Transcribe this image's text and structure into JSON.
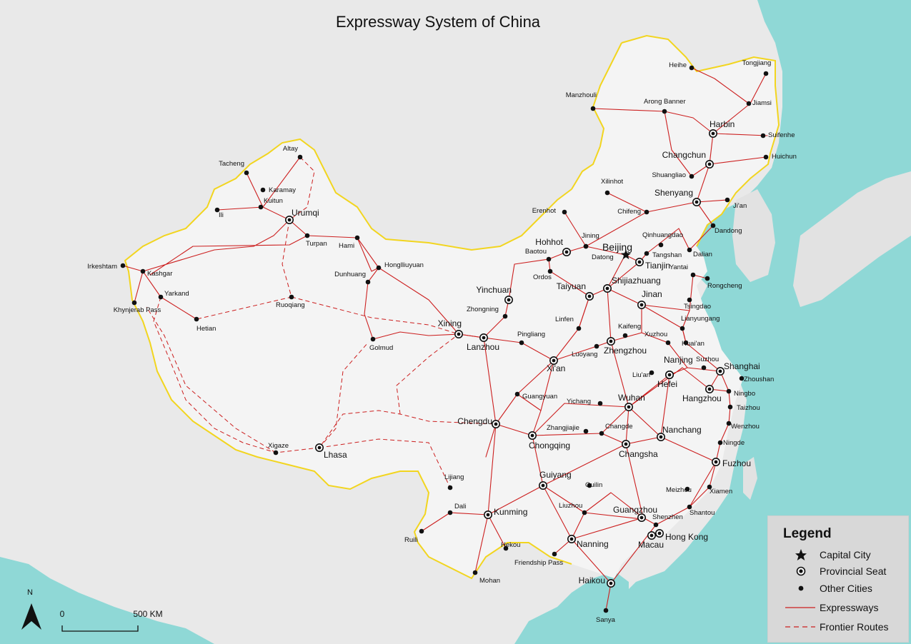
{
  "title": "Expressway System of China",
  "legend": {
    "title": "Legend",
    "items": [
      {
        "symbol": "capital",
        "label": "Capital City"
      },
      {
        "symbol": "provincial",
        "label": "Provincial Seat"
      },
      {
        "symbol": "other",
        "label": "Other Cities"
      },
      {
        "symbol": "expressway",
        "label": "Expressways"
      },
      {
        "symbol": "frontier",
        "label": "Frontier Routes"
      }
    ]
  },
  "scale_bar": {
    "start": "0",
    "end": "500 KM"
  },
  "north_arrow": "N",
  "colors": {
    "expressway": "#cc1f1f",
    "frontier": "#cc1f1f",
    "border": "#f2d51f",
    "sea": "#8fd8d6",
    "land": "#e9e9e9",
    "china_fill": "#f4f4f4"
  },
  "cities": {
    "capital": [
      {
        "name": "Beijing"
      }
    ],
    "provincial": [
      {
        "name": "Urumqi"
      },
      {
        "name": "Hohhot"
      },
      {
        "name": "Tianjin"
      },
      {
        "name": "Harbin"
      },
      {
        "name": "Changchun"
      },
      {
        "name": "Shenyang"
      },
      {
        "name": "Yinchuan"
      },
      {
        "name": "Taiyuan"
      },
      {
        "name": "Shijiazhuang"
      },
      {
        "name": "Jinan"
      },
      {
        "name": "Xining"
      },
      {
        "name": "Lanzhou"
      },
      {
        "name": "Zhengzhou"
      },
      {
        "name": "Xi'an"
      },
      {
        "name": "Nanjing"
      },
      {
        "name": "Shanghai"
      },
      {
        "name": "Hefei"
      },
      {
        "name": "Hangzhou"
      },
      {
        "name": "Wuhan"
      },
      {
        "name": "Chengdu"
      },
      {
        "name": "Chongqing"
      },
      {
        "name": "Nanchang"
      },
      {
        "name": "Changsha"
      },
      {
        "name": "Fuzhou"
      },
      {
        "name": "Lhasa"
      },
      {
        "name": "Guiyang"
      },
      {
        "name": "Kunming"
      },
      {
        "name": "Guangzhou"
      },
      {
        "name": "Nanning"
      },
      {
        "name": "Hong Kong"
      },
      {
        "name": "Macau"
      },
      {
        "name": "Haikou"
      }
    ],
    "other": [
      {
        "name": "Tongjiang"
      },
      {
        "name": "Heihe"
      },
      {
        "name": "Jiamsi"
      },
      {
        "name": "Manzhouli"
      },
      {
        "name": "Arong Banner"
      },
      {
        "name": "Suifenhe"
      },
      {
        "name": "Huichun"
      },
      {
        "name": "Shuangliao"
      },
      {
        "name": "Xilinhot"
      },
      {
        "name": "Chifeng"
      },
      {
        "name": "Ji'an"
      },
      {
        "name": "Erenhot"
      },
      {
        "name": "Dandong"
      },
      {
        "name": "Qinhuangdao"
      },
      {
        "name": "Jining"
      },
      {
        "name": "Tangshan"
      },
      {
        "name": "Dalian"
      },
      {
        "name": "Baotou"
      },
      {
        "name": "Datong"
      },
      {
        "name": "Ordos"
      },
      {
        "name": "Yantai"
      },
      {
        "name": "Rongcheng"
      },
      {
        "name": "Tsingdao"
      },
      {
        "name": "Lianyungang"
      },
      {
        "name": "Altay"
      },
      {
        "name": "Tacheng"
      },
      {
        "name": "Karamay"
      },
      {
        "name": "Kuitun"
      },
      {
        "name": "Ili"
      },
      {
        "name": "Turpan"
      },
      {
        "name": "Hami"
      },
      {
        "name": "Honglliuyuan"
      },
      {
        "name": "Dunhuang"
      },
      {
        "name": "Irkeshtam"
      },
      {
        "name": "Kashgar"
      },
      {
        "name": "Yarkand"
      },
      {
        "name": "Khynjerab Pass"
      },
      {
        "name": "Hetian"
      },
      {
        "name": "Ruoqiang"
      },
      {
        "name": "Golmud"
      },
      {
        "name": "Zhongning"
      },
      {
        "name": "Linfen"
      },
      {
        "name": "Kaifeng"
      },
      {
        "name": "Xuzhou"
      },
      {
        "name": "Huai'an"
      },
      {
        "name": "Pingliang"
      },
      {
        "name": "Luoyang"
      },
      {
        "name": "Suzhou"
      },
      {
        "name": "Zhoushan"
      },
      {
        "name": "Liu'an"
      },
      {
        "name": "Ningbo"
      },
      {
        "name": "Guangyuan"
      },
      {
        "name": "Yichang"
      },
      {
        "name": "Taizhou"
      },
      {
        "name": "Wenzhou"
      },
      {
        "name": "Zhangjiajie"
      },
      {
        "name": "Changde"
      },
      {
        "name": "Ningde"
      },
      {
        "name": "Xigaze"
      },
      {
        "name": "Lijiang"
      },
      {
        "name": "Guilin"
      },
      {
        "name": "Meizhou"
      },
      {
        "name": "Xiamen"
      },
      {
        "name": "Dali"
      },
      {
        "name": "Liuzhou"
      },
      {
        "name": "Shantou"
      },
      {
        "name": "Shenzhen"
      },
      {
        "name": "Ruili"
      },
      {
        "name": "Hekou"
      },
      {
        "name": "Friendship Pass"
      },
      {
        "name": "Mohan"
      },
      {
        "name": "Sanya"
      }
    ]
  }
}
